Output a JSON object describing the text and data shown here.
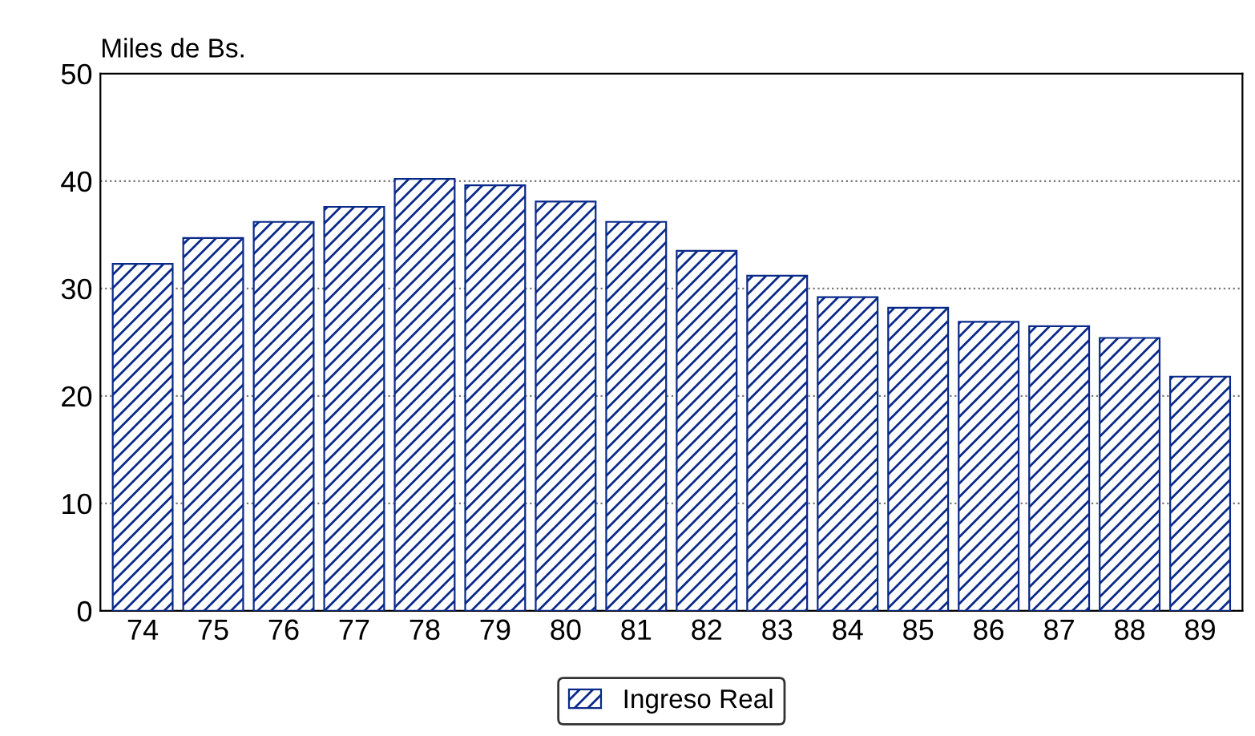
{
  "chart_data": {
    "type": "bar",
    "ylabel": "Miles de Bs.",
    "categories": [
      "74",
      "75",
      "76",
      "77",
      "78",
      "79",
      "80",
      "81",
      "82",
      "83",
      "84",
      "85",
      "86",
      "87",
      "88",
      "89"
    ],
    "series": [
      {
        "name": "Ingreso Real",
        "color": "#0a2a8a",
        "values": [
          32.3,
          34.7,
          36.2,
          37.6,
          40.2,
          39.6,
          38.1,
          36.2,
          33.5,
          31.2,
          29.2,
          28.2,
          26.9,
          26.5,
          25.4,
          21.8
        ]
      }
    ],
    "ylim": [
      0,
      50
    ],
    "yticks": [
      0,
      10,
      20,
      30,
      40,
      50
    ],
    "grid": "y",
    "legend": "bottom"
  }
}
